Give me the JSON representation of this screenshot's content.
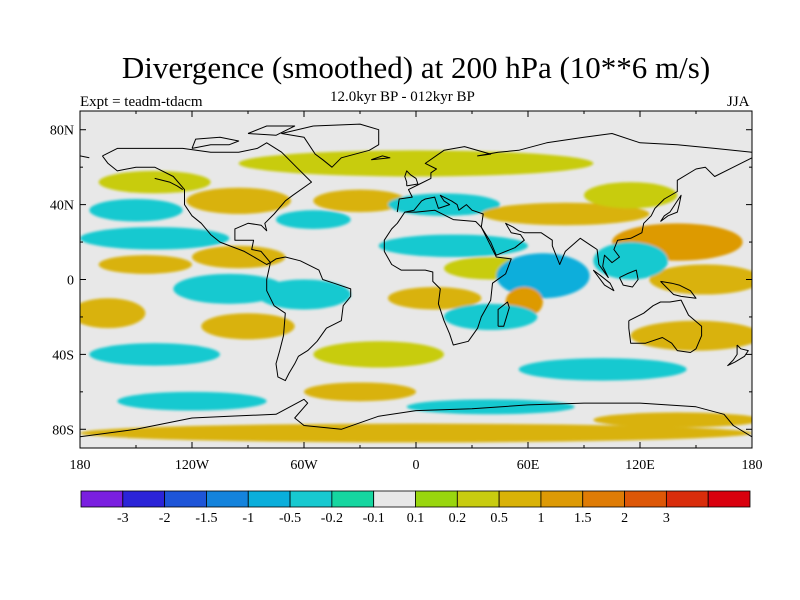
{
  "title": "Divergence (smoothed) at 200 hPa (10**6 m/s)",
  "subtitle": "12.0kyr BP - 012kyr BP",
  "experiment": "Expt = teadm-tdacm",
  "season": "JJA",
  "map": {
    "projection": "cylindrical-equidistant",
    "lon_range": [
      -180,
      180
    ],
    "lat_range": [
      -90,
      90
    ],
    "background_color": "#e8e8e8",
    "coastline_color": "#000000",
    "lat_ticks": [
      {
        "value": 80,
        "label": "80N"
      },
      {
        "value": 40,
        "label": "40N"
      },
      {
        "value": 0,
        "label": "0"
      },
      {
        "value": -40,
        "label": "40S"
      },
      {
        "value": -80,
        "label": "80S"
      }
    ],
    "lon_ticks": [
      {
        "value": -180,
        "label": "180"
      },
      {
        "value": -120,
        "label": "120W"
      },
      {
        "value": -60,
        "label": "60W"
      },
      {
        "value": 0,
        "label": "0"
      },
      {
        "value": 60,
        "label": "60E"
      },
      {
        "value": 120,
        "label": "120E"
      },
      {
        "value": 180,
        "label": "180"
      }
    ]
  },
  "colorbar": {
    "colors": [
      "#7a1fe0",
      "#2b24d8",
      "#1e55d8",
      "#1483dc",
      "#0aaedb",
      "#17c9d0",
      "#16d6a0",
      "#e8e8e8",
      "#99d60e",
      "#c8cc10",
      "#d9b207",
      "#dd9a05",
      "#df7c05",
      "#dd5707",
      "#d92d0b",
      "#d9000e"
    ],
    "labels": [
      "-3",
      "-2",
      "-1.5",
      "-1",
      "-0.5",
      "-0.2",
      "-0.1",
      "0.1",
      "0.2",
      "0.5",
      "1",
      "1.5",
      "2",
      "3"
    ]
  },
  "field_blobs": [
    {
      "lon": 0,
      "lat": 62,
      "rx": 95,
      "ry": 7,
      "value": 0.3
    },
    {
      "lon": -140,
      "lat": 52,
      "rx": 30,
      "ry": 6,
      "value": 0.3
    },
    {
      "lon": -95,
      "lat": 42,
      "rx": 28,
      "ry": 7,
      "value": 0.5
    },
    {
      "lon": -30,
      "lat": 42,
      "rx": 25,
      "ry": 6,
      "value": 0.5
    },
    {
      "lon": -150,
      "lat": 37,
      "rx": 25,
      "ry": 6,
      "value": -0.5
    },
    {
      "lon": -55,
      "lat": 32,
      "rx": 20,
      "ry": 5,
      "value": -0.5
    },
    {
      "lon": 15,
      "lat": 40,
      "rx": 30,
      "ry": 6,
      "value": -0.3
    },
    {
      "lon": 80,
      "lat": 35,
      "rx": 45,
      "ry": 6,
      "value": 0.5
    },
    {
      "lon": 115,
      "lat": 45,
      "rx": 25,
      "ry": 7,
      "value": 0.3
    },
    {
      "lon": -140,
      "lat": 22,
      "rx": 40,
      "ry": 6,
      "value": -0.5
    },
    {
      "lon": -95,
      "lat": 12,
      "rx": 25,
      "ry": 6,
      "value": 0.6
    },
    {
      "lon": -145,
      "lat": 8,
      "rx": 25,
      "ry": 5,
      "value": 0.8
    },
    {
      "lon": 20,
      "lat": 18,
      "rx": 40,
      "ry": 6,
      "value": -0.5
    },
    {
      "lon": 40,
      "lat": 6,
      "rx": 25,
      "ry": 6,
      "value": 0.4
    },
    {
      "lon": 140,
      "lat": 20,
      "rx": 35,
      "ry": 10,
      "value": 1.0
    },
    {
      "lon": 155,
      "lat": 0,
      "rx": 30,
      "ry": 8,
      "value": 0.5
    },
    {
      "lon": 115,
      "lat": 10,
      "rx": 20,
      "ry": 10,
      "value": -0.5
    },
    {
      "lon": 70,
      "lat": 2,
      "rx": 6,
      "ry": 5,
      "value": -2.5
    },
    {
      "lon": 68,
      "lat": 2,
      "rx": 25,
      "ry": 12,
      "value": -0.6
    },
    {
      "lon": 58,
      "lat": -12,
      "rx": 10,
      "ry": 8,
      "value": 1.3
    },
    {
      "lon": -100,
      "lat": -5,
      "rx": 30,
      "ry": 8,
      "value": -0.5
    },
    {
      "lon": -60,
      "lat": -8,
      "rx": 25,
      "ry": 8,
      "value": -0.4
    },
    {
      "lon": -165,
      "lat": -18,
      "rx": 20,
      "ry": 8,
      "value": 0.7
    },
    {
      "lon": -90,
      "lat": -25,
      "rx": 25,
      "ry": 7,
      "value": 0.5
    },
    {
      "lon": 10,
      "lat": -10,
      "rx": 25,
      "ry": 6,
      "value": 0.5
    },
    {
      "lon": 40,
      "lat": -20,
      "rx": 25,
      "ry": 7,
      "value": -0.5
    },
    {
      "lon": 150,
      "lat": -30,
      "rx": 35,
      "ry": 8,
      "value": 0.6
    },
    {
      "lon": -140,
      "lat": -40,
      "rx": 35,
      "ry": 6,
      "value": -0.3
    },
    {
      "lon": -20,
      "lat": -40,
      "rx": 35,
      "ry": 7,
      "value": 0.4
    },
    {
      "lon": 100,
      "lat": -48,
      "rx": 45,
      "ry": 6,
      "value": -0.4
    },
    {
      "lon": -30,
      "lat": -60,
      "rx": 30,
      "ry": 5,
      "value": 0.5
    },
    {
      "lon": -120,
      "lat": -65,
      "rx": 40,
      "ry": 5,
      "value": -0.3
    },
    {
      "lon": 40,
      "lat": -68,
      "rx": 45,
      "ry": 4,
      "value": -0.3
    },
    {
      "lon": 0,
      "lat": -82,
      "rx": 180,
      "ry": 5,
      "value": 0.5
    },
    {
      "lon": 140,
      "lat": -75,
      "rx": 45,
      "ry": 4,
      "value": 0.7
    }
  ],
  "coastlines": [
    [
      [
        -168,
        66
      ],
      [
        -160,
        70
      ],
      [
        -140,
        70
      ],
      [
        -125,
        70
      ],
      [
        -110,
        68
      ],
      [
        -95,
        68
      ],
      [
        -85,
        70
      ],
      [
        -80,
        73
      ],
      [
        -72,
        68
      ],
      [
        -64,
        60
      ],
      [
        -56,
        52
      ],
      [
        -66,
        45
      ],
      [
        -70,
        42
      ],
      [
        -76,
        35
      ],
      [
        -81,
        30
      ],
      [
        -80,
        26
      ],
      [
        -83,
        29
      ],
      [
        -90,
        30
      ],
      [
        -97,
        27
      ],
      [
        -97,
        21
      ],
      [
        -90,
        21
      ],
      [
        -87,
        21
      ],
      [
        -88,
        16
      ],
      [
        -83,
        15
      ],
      [
        -78,
        9
      ],
      [
        -80,
        8
      ],
      [
        -85,
        11
      ],
      [
        -92,
        15
      ],
      [
        -105,
        20
      ],
      [
        -110,
        24
      ],
      [
        -115,
        30
      ],
      [
        -120,
        34
      ],
      [
        -124,
        40
      ],
      [
        -124,
        48
      ],
      [
        -130,
        55
      ],
      [
        -140,
        60
      ],
      [
        -150,
        60
      ],
      [
        -160,
        58
      ],
      [
        -165,
        62
      ],
      [
        -168,
        66
      ]
    ],
    [
      [
        -78,
        9
      ],
      [
        -75,
        11
      ],
      [
        -70,
        12
      ],
      [
        -62,
        10
      ],
      [
        -52,
        5
      ],
      [
        -50,
        0
      ],
      [
        -44,
        -2
      ],
      [
        -35,
        -5
      ],
      [
        -35,
        -9
      ],
      [
        -39,
        -14
      ],
      [
        -40,
        -22
      ],
      [
        -48,
        -26
      ],
      [
        -53,
        -33
      ],
      [
        -58,
        -38
      ],
      [
        -63,
        -41
      ],
      [
        -65,
        -45
      ],
      [
        -68,
        -50
      ],
      [
        -70,
        -54
      ],
      [
        -74,
        -52
      ],
      [
        -75,
        -45
      ],
      [
        -73,
        -38
      ],
      [
        -71,
        -30
      ],
      [
        -70,
        -18
      ],
      [
        -76,
        -14
      ],
      [
        -80,
        -6
      ],
      [
        -80,
        0
      ],
      [
        -78,
        9
      ]
    ],
    [
      [
        -17,
        15
      ],
      [
        -17,
        21
      ],
      [
        -13,
        27
      ],
      [
        -10,
        30
      ],
      [
        -6,
        36
      ],
      [
        0,
        36
      ],
      [
        10,
        37
      ],
      [
        20,
        32
      ],
      [
        32,
        31
      ],
      [
        35,
        28
      ],
      [
        43,
        12
      ],
      [
        51,
        11
      ],
      [
        48,
        3
      ],
      [
        41,
        -2
      ],
      [
        40,
        -11
      ],
      [
        35,
        -20
      ],
      [
        33,
        -26
      ],
      [
        28,
        -33
      ],
      [
        20,
        -35
      ],
      [
        18,
        -29
      ],
      [
        15,
        -22
      ],
      [
        12,
        -13
      ],
      [
        13,
        -5
      ],
      [
        9,
        -1
      ],
      [
        9,
        4
      ],
      [
        5,
        5
      ],
      [
        -3,
        5
      ],
      [
        -8,
        5
      ],
      [
        -13,
        8
      ],
      [
        -17,
        15
      ]
    ],
    [
      [
        -10,
        36
      ],
      [
        -9,
        43
      ],
      [
        -2,
        44
      ],
      [
        -4,
        48
      ],
      [
        2,
        51
      ],
      [
        8,
        54
      ],
      [
        8,
        57
      ],
      [
        11,
        59
      ],
      [
        5,
        62
      ],
      [
        15,
        69
      ],
      [
        26,
        71
      ],
      [
        40,
        67
      ],
      [
        33,
        66
      ],
      [
        44,
        68
      ],
      [
        55,
        69
      ],
      [
        70,
        73
      ],
      [
        90,
        76
      ],
      [
        105,
        78
      ],
      [
        120,
        73
      ],
      [
        140,
        72
      ],
      [
        160,
        70
      ],
      [
        180,
        68
      ]
    ],
    [
      [
        -180,
        66
      ],
      [
        -175,
        65
      ]
    ],
    [
      [
        180,
        65
      ],
      [
        170,
        60
      ],
      [
        160,
        55
      ],
      [
        155,
        60
      ],
      [
        150,
        59
      ],
      [
        140,
        53
      ],
      [
        140,
        47
      ],
      [
        133,
        43
      ],
      [
        128,
        38
      ],
      [
        126,
        34
      ],
      [
        122,
        30
      ],
      [
        121,
        25
      ],
      [
        115,
        22
      ],
      [
        108,
        21
      ],
      [
        106,
        16
      ],
      [
        109,
        12
      ],
      [
        105,
        9
      ],
      [
        101,
        13
      ],
      [
        100,
        7
      ],
      [
        103,
        1
      ],
      [
        98,
        8
      ],
      [
        97,
        16
      ],
      [
        94,
        18
      ],
      [
        88,
        22
      ],
      [
        80,
        15
      ],
      [
        77,
        8
      ],
      [
        73,
        18
      ],
      [
        73,
        21
      ],
      [
        67,
        25
      ],
      [
        58,
        25
      ],
      [
        55,
        26
      ],
      [
        52,
        28
      ],
      [
        48,
        30
      ],
      [
        51,
        25
      ],
      [
        56,
        24
      ],
      [
        58,
        21
      ],
      [
        53,
        17
      ],
      [
        43,
        13
      ],
      [
        40,
        20
      ],
      [
        35,
        28
      ],
      [
        36,
        35
      ],
      [
        30,
        37
      ],
      [
        27,
        40
      ],
      [
        23,
        37
      ],
      [
        22,
        40
      ],
      [
        19,
        42
      ],
      [
        13,
        45
      ],
      [
        15,
        42
      ],
      [
        18,
        40
      ],
      [
        12,
        38
      ],
      [
        10,
        44
      ],
      [
        5,
        43
      ],
      [
        3,
        42
      ],
      [
        -1,
        37
      ],
      [
        -6,
        36
      ]
    ],
    [
      [
        131,
        31
      ],
      [
        135,
        34
      ],
      [
        140,
        36
      ],
      [
        141,
        40
      ],
      [
        142,
        45
      ],
      [
        140,
        42
      ],
      [
        136,
        36
      ],
      [
        133,
        34
      ],
      [
        131,
        31
      ]
    ],
    [
      [
        -5,
        50
      ],
      [
        1,
        51
      ],
      [
        0,
        54
      ],
      [
        -3,
        56
      ],
      [
        -5,
        58
      ],
      [
        -6,
        55
      ],
      [
        -5,
        52
      ],
      [
        -5,
        50
      ]
    ],
    [
      [
        95,
        5
      ],
      [
        99,
        2
      ],
      [
        104,
        -2
      ],
      [
        106,
        -6
      ],
      [
        101,
        -3
      ],
      [
        95,
        5
      ]
    ],
    [
      [
        109,
        1
      ],
      [
        113,
        3
      ],
      [
        118,
        5
      ],
      [
        119,
        0
      ],
      [
        116,
        -4
      ],
      [
        111,
        -3
      ],
      [
        109,
        1
      ]
    ],
    [
      [
        131,
        -1
      ],
      [
        137,
        -2
      ],
      [
        141,
        -3
      ],
      [
        147,
        -6
      ],
      [
        150,
        -10
      ],
      [
        142,
        -9
      ],
      [
        138,
        -8
      ],
      [
        131,
        -1
      ]
    ],
    [
      [
        114,
        -22
      ],
      [
        114,
        -26
      ],
      [
        115,
        -34
      ],
      [
        123,
        -34
      ],
      [
        132,
        -31
      ],
      [
        137,
        -34
      ],
      [
        140,
        -38
      ],
      [
        147,
        -39
      ],
      [
        150,
        -37
      ],
      [
        153,
        -30
      ],
      [
        153,
        -25
      ],
      [
        146,
        -19
      ],
      [
        142,
        -11
      ],
      [
        136,
        -12
      ],
      [
        131,
        -12
      ],
      [
        127,
        -14
      ],
      [
        122,
        -18
      ],
      [
        114,
        -22
      ]
    ],
    [
      [
        44,
        -25
      ],
      [
        47,
        -25
      ],
      [
        50,
        -15
      ],
      [
        49,
        -12
      ],
      [
        44,
        -16
      ],
      [
        44,
        -25
      ]
    ],
    [
      [
        172,
        -35
      ],
      [
        174,
        -37
      ],
      [
        178,
        -38
      ],
      [
        176,
        -41
      ],
      [
        171,
        -44
      ],
      [
        167,
        -46
      ],
      [
        170,
        -43
      ],
      [
        172,
        -40
      ],
      [
        172,
        -35
      ]
    ],
    [
      [
        -55,
        82
      ],
      [
        -30,
        83
      ],
      [
        -20,
        80
      ],
      [
        -20,
        72
      ],
      [
        -25,
        69
      ],
      [
        -40,
        65
      ],
      [
        -45,
        60
      ],
      [
        -50,
        64
      ],
      [
        -54,
        67
      ],
      [
        -60,
        76
      ],
      [
        -72,
        78
      ],
      [
        -55,
        82
      ]
    ],
    [
      [
        -180,
        -84
      ],
      [
        -150,
        -80
      ],
      [
        -120,
        -74
      ],
      [
        -100,
        -73
      ],
      [
        -75,
        -72
      ],
      [
        -60,
        -64
      ],
      [
        -58,
        -66
      ],
      [
        -65,
        -74
      ],
      [
        -60,
        -78
      ],
      [
        -40,
        -80
      ],
      [
        -20,
        -73
      ],
      [
        0,
        -70
      ],
      [
        30,
        -69
      ],
      [
        60,
        -67
      ],
      [
        90,
        -66
      ],
      [
        120,
        -66
      ],
      [
        150,
        -68
      ],
      [
        165,
        -72
      ],
      [
        170,
        -78
      ],
      [
        180,
        -84
      ]
    ],
    [
      [
        -90,
        78
      ],
      [
        -80,
        82
      ],
      [
        -65,
        82
      ],
      [
        -75,
        77
      ],
      [
        -90,
        78
      ]
    ],
    [
      [
        -120,
        70
      ],
      [
        -110,
        72
      ],
      [
        -100,
        72
      ],
      [
        -95,
        74
      ],
      [
        -105,
        76
      ],
      [
        -118,
        75
      ],
      [
        -120,
        70
      ]
    ],
    [
      [
        -140,
        54
      ],
      [
        -132,
        52
      ],
      [
        -128,
        50
      ],
      [
        -125,
        48
      ]
    ],
    [
      [
        -24,
        64
      ],
      [
        -14,
        65
      ],
      [
        -18,
        66
      ],
      [
        -24,
        64
      ]
    ]
  ]
}
